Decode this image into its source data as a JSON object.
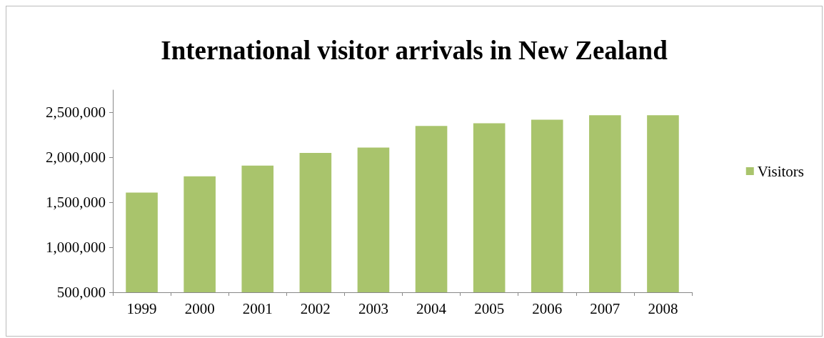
{
  "chart_data": {
    "type": "bar",
    "title": "International visitor arrivals in New Zealand",
    "categories": [
      "1999",
      "2000",
      "2001",
      "2002",
      "2003",
      "2004",
      "2005",
      "2006",
      "2007",
      "2008"
    ],
    "series": [
      {
        "name": "Visitors",
        "color": "#a9c46c",
        "values": [
          1610000,
          1790000,
          1910000,
          2050000,
          2110000,
          2350000,
          2380000,
          2420000,
          2470000,
          2470000
        ]
      }
    ],
    "ylim": [
      500000,
      2750000
    ],
    "yticks": [
      {
        "value": 500000,
        "label": "500,000"
      },
      {
        "value": 1000000,
        "label": "1,000,000"
      },
      {
        "value": 1500000,
        "label": "1,500,000"
      },
      {
        "value": 2000000,
        "label": "2,000,000"
      },
      {
        "value": 2500000,
        "label": "2,500,000"
      }
    ],
    "grid": false,
    "legend": "right"
  }
}
